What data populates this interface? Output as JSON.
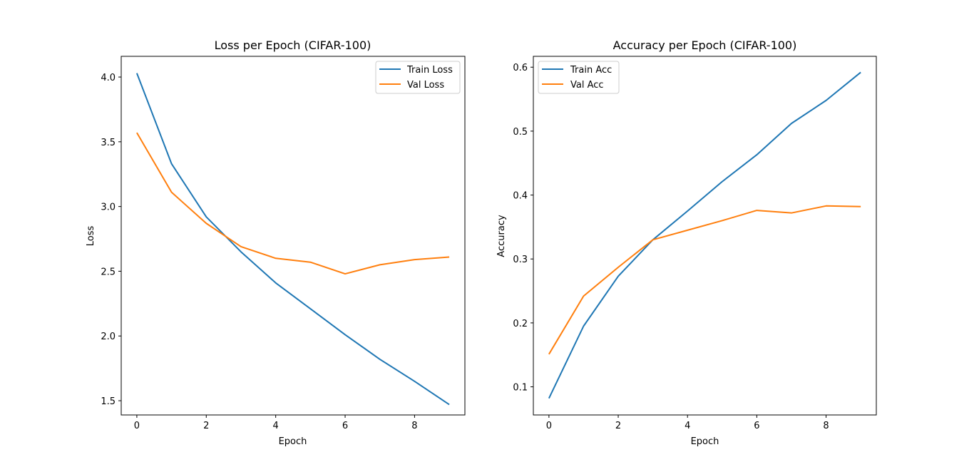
{
  "chart_data": [
    {
      "type": "line",
      "title": "Loss per Epoch (CIFAR-100)",
      "xlabel": "Epoch",
      "ylabel": "Loss",
      "xlim": [
        -0.45,
        9.45
      ],
      "ylim": [
        1.39,
        4.16
      ],
      "xticks": [
        0,
        2,
        4,
        6,
        8
      ],
      "yticks": [
        1.5,
        2.0,
        2.5,
        3.0,
        3.5,
        4.0
      ],
      "ytick_labels": [
        "1.5",
        "2.0",
        "2.5",
        "3.0",
        "3.5",
        "4.0"
      ],
      "grid": false,
      "legend_position": "top-right",
      "x": [
        0,
        1,
        2,
        3,
        4,
        5,
        6,
        7,
        8,
        9
      ],
      "series": [
        {
          "name": "Train Loss",
          "color": "#1f77b4",
          "values": [
            4.03,
            3.33,
            2.92,
            2.65,
            2.41,
            2.21,
            2.01,
            1.82,
            1.65,
            1.47
          ]
        },
        {
          "name": "Val Loss",
          "color": "#ff7f0e",
          "values": [
            3.57,
            3.11,
            2.87,
            2.69,
            2.6,
            2.57,
            2.48,
            2.55,
            2.59,
            2.61
          ]
        }
      ]
    },
    {
      "type": "line",
      "title": "Accuracy per Epoch (CIFAR-100)",
      "xlabel": "Epoch",
      "ylabel": "Accuracy",
      "xlim": [
        -0.45,
        9.45
      ],
      "ylim": [
        0.056,
        0.617
      ],
      "xticks": [
        0,
        2,
        4,
        6,
        8
      ],
      "yticks": [
        0.1,
        0.2,
        0.3,
        0.4,
        0.5,
        0.6
      ],
      "ytick_labels": [
        "0.1",
        "0.2",
        "0.3",
        "0.4",
        "0.5",
        "0.6"
      ],
      "grid": false,
      "legend_position": "top-left",
      "x": [
        0,
        1,
        2,
        3,
        4,
        5,
        6,
        7,
        8,
        9
      ],
      "series": [
        {
          "name": "Train Acc",
          "color": "#1f77b4",
          "values": [
            0.082,
            0.195,
            0.273,
            0.33,
            0.375,
            0.421,
            0.463,
            0.512,
            0.548,
            0.592
          ]
        },
        {
          "name": "Val Acc",
          "color": "#ff7f0e",
          "values": [
            0.151,
            0.242,
            0.287,
            0.33,
            0.345,
            0.36,
            0.376,
            0.372,
            0.383,
            0.382
          ]
        }
      ]
    }
  ]
}
